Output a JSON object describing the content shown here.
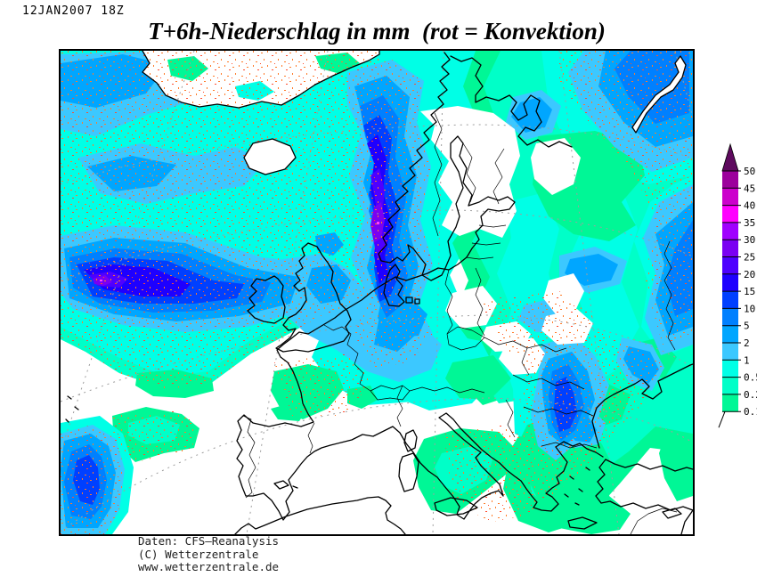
{
  "header": {
    "run_label": "12JAN2007 18Z",
    "title": "T+6h-Niederschlag in mm  (rot = Konvektion)"
  },
  "legend": {
    "unit": "mm",
    "ticks": [
      "50",
      "45",
      "40",
      "35",
      "30",
      "25",
      "20",
      "15",
      "10",
      "5",
      "2",
      "1",
      "0.5",
      "0.2",
      "0.1"
    ],
    "segment_colors": [
      "#9c009c",
      "#cc00cc",
      "#ff00ff",
      "#a000ff",
      "#7a00f2",
      "#4e00ff",
      "#1e00ff",
      "#0040ff",
      "#0080ff",
      "#00a6ff",
      "#3cc8ff",
      "#00ffe6",
      "#00ffc8",
      "#00f796"
    ],
    "arrow_color": "#5e0a5e"
  },
  "map": {
    "convection_color": "#ff7b29",
    "coast_color": "#000000",
    "graticule_color": "#9e9e9e",
    "no_precip_color": "#ffffff"
  },
  "chart_data": {
    "type": "heatmap",
    "title": "T+6h-Niederschlag in mm (rot = Konvektion)",
    "unit": "mm",
    "region": "Europe / North Atlantic",
    "levels": [
      0.1,
      0.2,
      0.5,
      1,
      2,
      5,
      10,
      15,
      20,
      25,
      30,
      35,
      40,
      45,
      50
    ],
    "level_colors_low_to_high": [
      "#00f796",
      "#00ffc8",
      "#00ffe6",
      "#3cc8ff",
      "#00a6ff",
      "#0080ff",
      "#0040ff",
      "#1e00ff",
      "#4e00ff",
      "#7a00f2",
      "#a000ff",
      "#ff00ff",
      "#cc00cc",
      "#9c009c"
    ],
    "annotations": [
      "red stipple = convective precipitation"
    ],
    "legend_position": "right"
  },
  "footer": {
    "lines": [
      "Daten: CFS–Reanalysis",
      "(C) Wetterzentrale",
      "www.wetterzentrale.de"
    ]
  }
}
